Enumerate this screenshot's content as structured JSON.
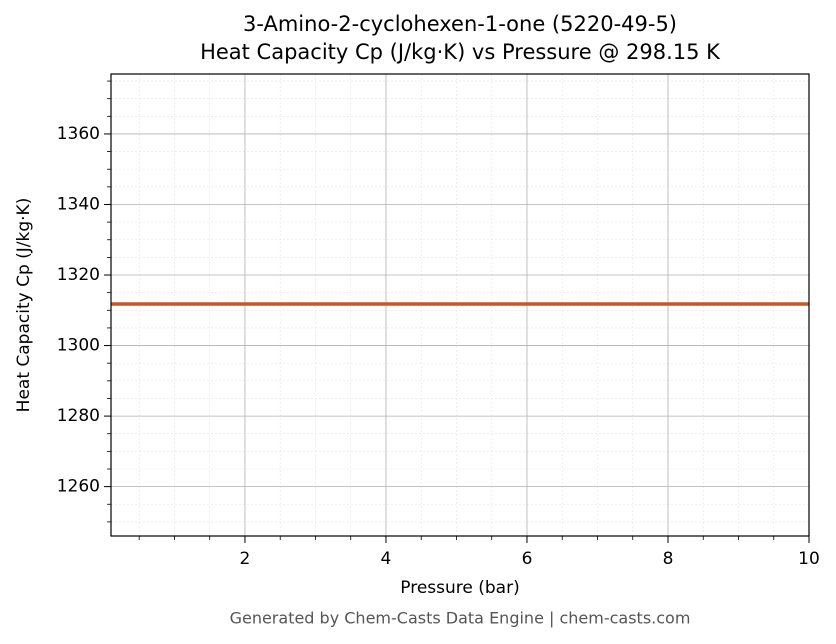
{
  "chart_data": {
    "type": "line",
    "title": "3-Amino-2-cyclohexen-1-one (5220-49-5)",
    "subtitle": "Heat Capacity Cp (J/kg·K) vs Pressure @ 298.15 K",
    "xlabel": "Pressure (bar)",
    "ylabel": "Heat Capacity Cp (J/kg·K)",
    "footnote": "Generated by Chem-Casts Data Engine | chem-casts.com",
    "x": [
      0.1,
      10
    ],
    "series": [
      {
        "name": "Cp",
        "color": "#c8562b",
        "values": [
          1311.8,
          1311.8
        ]
      }
    ],
    "xlim": [
      0.1,
      10
    ],
    "ylim": [
      1246,
      1377
    ],
    "xticks": [
      2,
      4,
      6,
      8,
      10
    ],
    "yticks": [
      1260,
      1280,
      1300,
      1320,
      1340,
      1360
    ],
    "xminorticks": [
      0.5,
      1,
      1.5,
      2.5,
      3,
      3.5,
      4.5,
      5,
      5.5,
      6.5,
      7,
      7.5,
      8.5,
      9,
      9.5
    ],
    "yminorticks": [
      1250,
      1255,
      1265,
      1270,
      1275,
      1285,
      1290,
      1295,
      1305,
      1310,
      1315,
      1325,
      1330,
      1335,
      1345,
      1350,
      1355,
      1365,
      1370,
      1375
    ],
    "grid": true,
    "minor_grid": true
  }
}
